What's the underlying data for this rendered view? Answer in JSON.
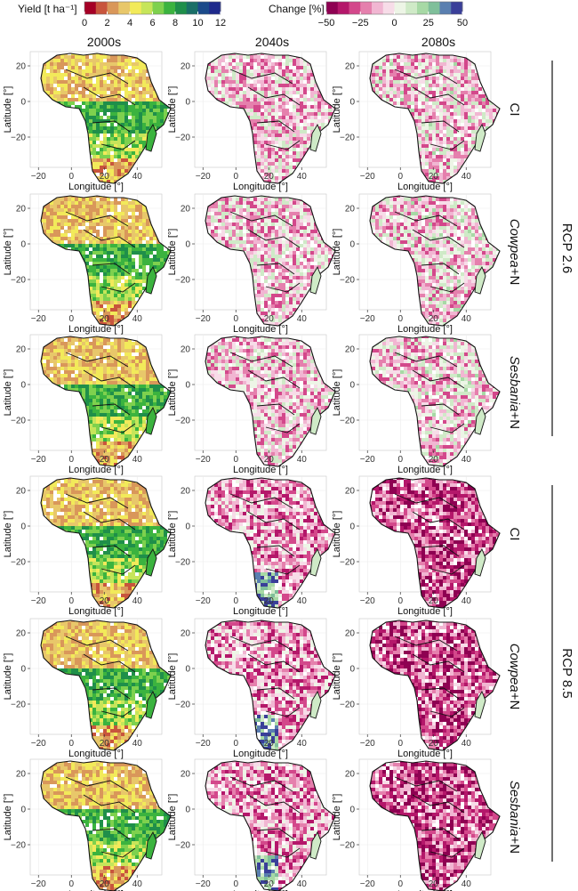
{
  "chart_data": {
    "type": "map-grid",
    "legends": {
      "yield": {
        "title": "Yield [t ha⁻¹]",
        "ticks": [
          "0",
          "2",
          "4",
          "6",
          "8",
          "10",
          "12"
        ],
        "range": [
          0,
          12
        ],
        "colors": [
          "#a50026",
          "#c8553d",
          "#d9975a",
          "#e8c76a",
          "#f2ea5a",
          "#c6e55a",
          "#7ed14e",
          "#3bb33f",
          "#1f8f4a",
          "#1a6f67",
          "#1b4a8a",
          "#1f2a8c"
        ]
      },
      "change": {
        "title": "Change [%]",
        "ticks": [
          "−50",
          "−25",
          "0",
          "25",
          "50"
        ],
        "range": [
          -50,
          50
        ],
        "colors": [
          "#8e0152",
          "#b4176a",
          "#d3488b",
          "#e580ad",
          "#f1b6d2",
          "#f7dce8",
          "#edf5e6",
          "#cfeac7",
          "#a7d9a5",
          "#7fbf9a",
          "#5a7fb0",
          "#3a3f99"
        ]
      }
    },
    "columns": [
      "2000s",
      "2040s",
      "2080s"
    ],
    "rows": [
      {
        "label": "CI",
        "italic": ""
      },
      {
        "label": "+N",
        "italic": "Cowpea"
      },
      {
        "label": "+N",
        "italic": "Sesbania"
      },
      {
        "label": "CI",
        "italic": ""
      },
      {
        "label": "+N",
        "italic": "Cowpea"
      },
      {
        "label": "+N",
        "italic": "Sesbania"
      }
    ],
    "scenarios": [
      "RCP 2.6",
      "RCP 8.5"
    ],
    "axes": {
      "xlabel": "Longitude [°]",
      "ylabel": "Latitude [°]",
      "xticks": [
        "−20",
        "0",
        "20",
        "40"
      ],
      "yticks": [
        "20",
        "0",
        "−20"
      ],
      "xlim": [
        -25,
        55
      ],
      "ylim": [
        -37,
        28
      ]
    },
    "panel_data": {
      "2000s": {
        "variable": "yield",
        "description": "baseline yield"
      },
      "2040s": {
        "variable": "change",
        "description": "relative change vs 2000s"
      },
      "2080s": {
        "variable": "change",
        "description": "relative change vs 2000s"
      }
    }
  }
}
